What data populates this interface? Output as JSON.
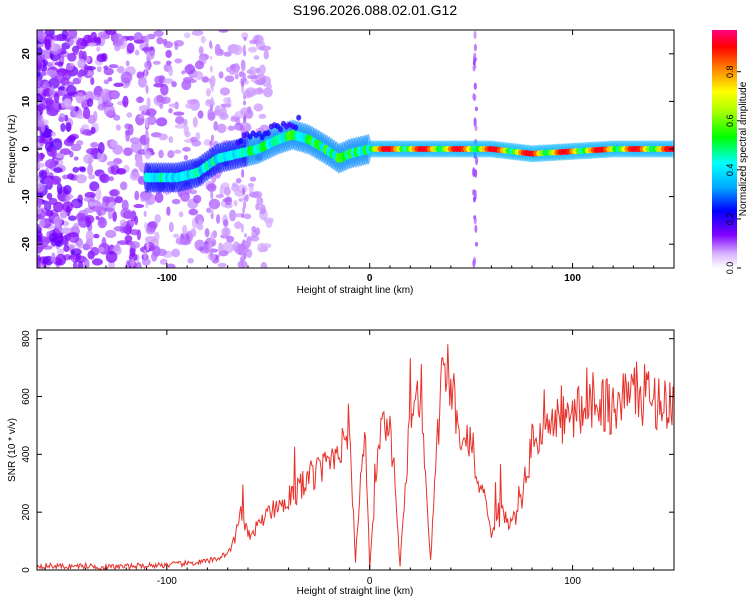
{
  "title": "S196.2026.088.02.01.G12",
  "colors": {
    "snr_line": "#e8312a",
    "axis": "#000000",
    "background": "#ffffff"
  },
  "chart_data": [
    {
      "type": "heatmap",
      "xlabel": "Height of straight line (km)",
      "ylabel": "Frequency (Hz)",
      "xlim": [
        -164,
        150
      ],
      "ylim": [
        -25,
        25
      ],
      "xticks": [
        -100,
        0,
        100
      ],
      "yticks": [
        -20,
        -10,
        0,
        10,
        20
      ],
      "colorbar": {
        "label": "Normalized spectral amplitude",
        "range": [
          0.0,
          0.97
        ],
        "ticks": [
          "0.0",
          "0.2",
          "0.4",
          "0.6",
          "0.8"
        ],
        "colormap": "rainbow"
      },
      "ridge": {
        "x": [
          -110,
          -95,
          -85,
          -75,
          -65,
          -55,
          -45,
          -38,
          -30,
          -22,
          -15,
          -10,
          -5,
          0,
          20,
          40,
          60,
          80,
          100,
          120,
          150
        ],
        "freq": [
          -6,
          -6,
          -5,
          -2,
          -1,
          0,
          2,
          3,
          2,
          0,
          -2,
          -1,
          -0.5,
          0,
          0,
          0,
          0,
          -1,
          -0.5,
          0,
          0
        ]
      }
    },
    {
      "type": "line",
      "xlabel": "Height of straight line (km)",
      "ylabel": "SNR (10 * v/v)",
      "xlim": [
        -164,
        150
      ],
      "ylim": [
        0,
        830
      ],
      "xticks": [
        -100,
        0,
        100
      ],
      "yticks": [
        0,
        200,
        400,
        600,
        800
      ],
      "series": [
        {
          "name": "SNR",
          "x": [
            -164,
            -150,
            -140,
            -130,
            -120,
            -110,
            -100,
            -90,
            -80,
            -75,
            -70,
            -66,
            -64,
            -62,
            -60,
            -55,
            -50,
            -45,
            -40,
            -35,
            -30,
            -25,
            -20,
            -15,
            -10,
            -7,
            -4,
            -2,
            0,
            5,
            10,
            15,
            20,
            25,
            30,
            35,
            38,
            40,
            42,
            45,
            48,
            50,
            52,
            55,
            58,
            60,
            62,
            64,
            66,
            68,
            70,
            72,
            75,
            78,
            80,
            85,
            90,
            95,
            100,
            105,
            110,
            115,
            120,
            125,
            130,
            135,
            140,
            145,
            150
          ],
          "y": [
            15,
            12,
            14,
            10,
            12,
            15,
            18,
            22,
            30,
            40,
            60,
            110,
            200,
            160,
            120,
            150,
            200,
            230,
            250,
            280,
            320,
            340,
            380,
            430,
            500,
            30,
            380,
            420,
            10,
            460,
            480,
            20,
            560,
            600,
            30,
            640,
            700,
            650,
            580,
            460,
            500,
            420,
            350,
            280,
            200,
            100,
            150,
            180,
            200,
            160,
            180,
            170,
            250,
            360,
            440,
            480,
            500,
            520,
            530,
            560,
            600,
            580,
            560,
            600,
            620,
            600,
            590,
            580,
            570
          ]
        }
      ]
    }
  ]
}
